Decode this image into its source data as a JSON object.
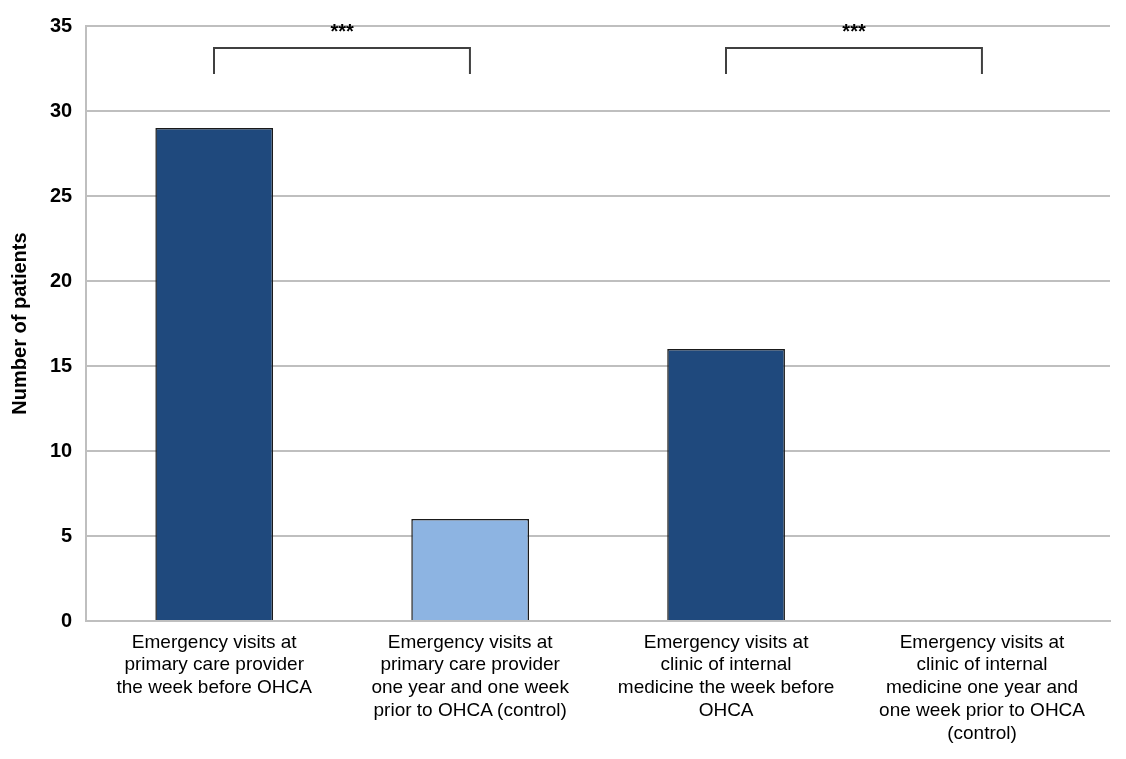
{
  "chart_data": {
    "type": "bar",
    "ylabel": "Number of patients",
    "categories": [
      "Emergency visits at primary care provider the week before OHCA",
      "Emergency visits at primary care provider one year and one week prior to OHCA (control)",
      "Emergency visits at clinic of internal medicine the week before OHCA",
      "Emergency visits at clinic of internal medicine one year and one week prior to OHCA (control)"
    ],
    "values": [
      29,
      6,
      16,
      0
    ],
    "colors": [
      "#1f497d",
      "#8db4e2",
      "#1f497d",
      "#8db4e2"
    ],
    "ylim": [
      0,
      35
    ],
    "yticks": [
      0,
      5,
      10,
      15,
      20,
      25,
      30,
      35
    ],
    "grid": "y",
    "legend": false,
    "annotations": [
      "***",
      "***"
    ]
  }
}
